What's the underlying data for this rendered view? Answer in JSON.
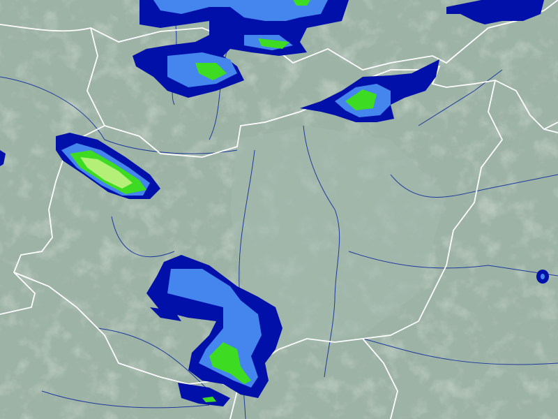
{
  "map": {
    "colors": {
      "terrain_base": "#9db3a6",
      "terrain_plain": "#a3b9ad",
      "terrain_hills": "#b7c3b5",
      "border": "#ffffff",
      "river": "#1c3a9c",
      "precip_level_1": "#0010a8",
      "precip_level_2": "#4585ee",
      "precip_level_3": "#3ddc22",
      "precip_level_4": "#b4f078"
    }
  }
}
